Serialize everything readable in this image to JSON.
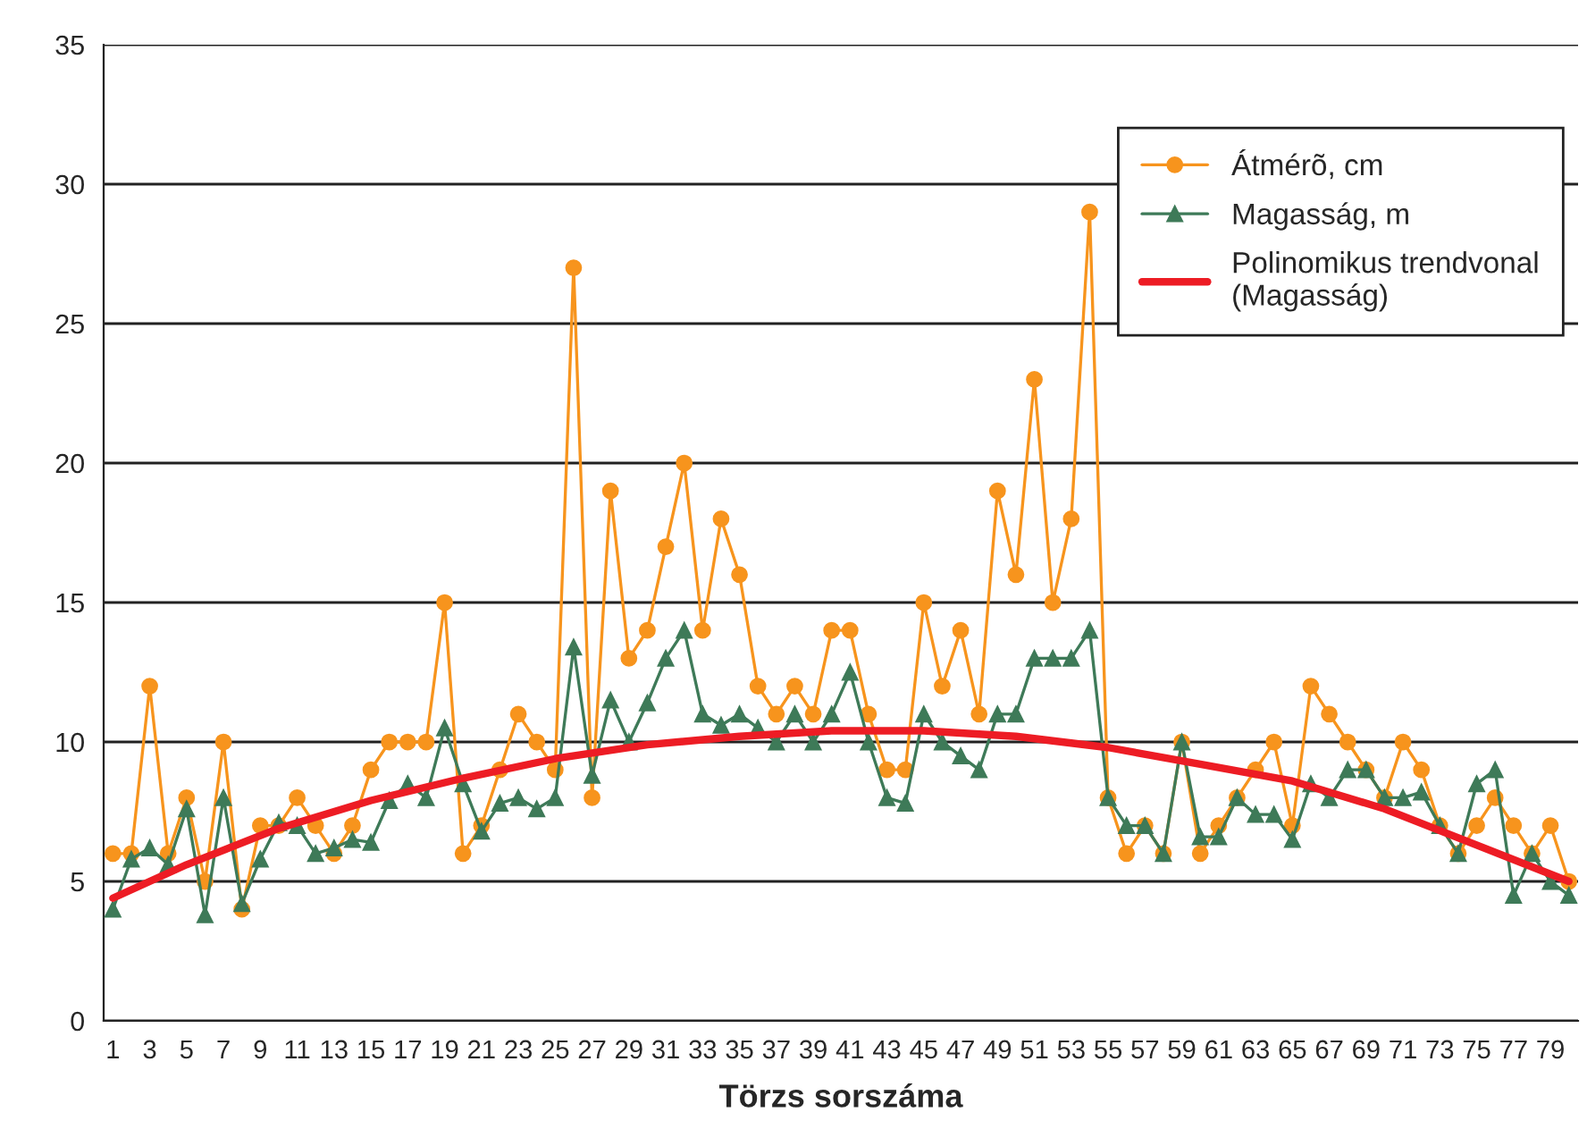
{
  "chart_data": {
    "type": "line",
    "xlabel": "Törzs sorszáma",
    "x": [
      1,
      2,
      3,
      4,
      5,
      6,
      7,
      8,
      9,
      10,
      11,
      12,
      13,
      14,
      15,
      16,
      17,
      18,
      19,
      20,
      21,
      22,
      23,
      24,
      25,
      26,
      27,
      28,
      29,
      30,
      31,
      32,
      33,
      34,
      35,
      36,
      37,
      38,
      39,
      40,
      41,
      42,
      43,
      44,
      45,
      46,
      47,
      48,
      49,
      50,
      51,
      52,
      53,
      54,
      55,
      56,
      57,
      58,
      59,
      60,
      61,
      62,
      63,
      64,
      65,
      66,
      67,
      68,
      69,
      70,
      71,
      72,
      73,
      74,
      75,
      76,
      77,
      78,
      79,
      80
    ],
    "xlim": [
      0.5,
      80.5
    ],
    "xticks": [
      1,
      3,
      5,
      7,
      9,
      11,
      13,
      15,
      17,
      19,
      21,
      23,
      25,
      27,
      29,
      31,
      33,
      35,
      37,
      39,
      41,
      43,
      45,
      47,
      49,
      51,
      53,
      55,
      57,
      59,
      61,
      63,
      65,
      67,
      69,
      71,
      73,
      75,
      77,
      79
    ],
    "ylim": [
      0,
      35
    ],
    "yticks": [
      0,
      5,
      10,
      15,
      20,
      25,
      30,
      35
    ],
    "grid": "y",
    "legend": "top right",
    "series": [
      {
        "name": "Átmérõ, cm",
        "color": "#f7941d",
        "marker": "circle",
        "values": [
          6,
          6,
          12,
          6,
          8,
          5,
          10,
          4,
          7,
          7,
          8,
          7,
          6,
          7,
          9,
          10,
          10,
          10,
          15,
          6,
          7,
          9,
          11,
          10,
          9,
          27,
          8,
          19,
          13,
          14,
          17,
          20,
          14,
          18,
          16,
          12,
          11,
          12,
          11,
          14,
          14,
          11,
          9,
          9,
          15,
          12,
          14,
          11,
          19,
          16,
          23,
          15,
          18,
          29,
          8,
          6,
          7,
          6,
          10,
          6,
          7,
          8,
          9,
          10,
          7,
          12,
          11,
          10,
          9,
          8,
          10,
          9,
          7,
          6,
          7,
          8,
          7,
          6,
          7,
          5
        ]
      },
      {
        "name": "Magasság, m",
        "color": "#3e7a58",
        "marker": "triangle",
        "values": [
          4.0,
          5.8,
          6.2,
          5.6,
          7.6,
          3.8,
          8.0,
          4.2,
          5.8,
          7.1,
          7.0,
          6.0,
          6.2,
          6.5,
          6.4,
          7.9,
          8.5,
          8.0,
          10.5,
          8.5,
          6.8,
          7.8,
          8.0,
          7.6,
          8.0,
          13.4,
          8.8,
          11.5,
          10.0,
          11.4,
          13.0,
          14.0,
          11.0,
          10.6,
          11.0,
          10.5,
          10.0,
          11.0,
          10.0,
          11.0,
          12.5,
          10.0,
          8.0,
          7.8,
          11.0,
          10.0,
          9.5,
          9.0,
          11.0,
          11.0,
          13.0,
          13.0,
          13.0,
          14.0,
          8.0,
          7.0,
          7.0,
          6.0,
          10.0,
          6.6,
          6.6,
          8.0,
          7.4,
          7.4,
          6.5,
          8.5,
          8.0,
          9.0,
          9.0,
          8.0,
          8.0,
          8.2,
          7.0,
          6.0,
          8.5,
          9.0,
          4.5,
          6.0,
          5.0,
          4.5
        ]
      },
      {
        "name": "Polinomikus trendvonal\n(Magasság)",
        "color": "#ed1c24",
        "marker": "none",
        "x": [
          1,
          5,
          10,
          15,
          20,
          25,
          30,
          35,
          40,
          45,
          50,
          55,
          60,
          65,
          70,
          75,
          80
        ],
        "values": [
          4.4,
          5.6,
          6.9,
          7.9,
          8.7,
          9.4,
          9.9,
          10.2,
          10.4,
          10.4,
          10.2,
          9.8,
          9.2,
          8.6,
          7.6,
          6.3,
          5.0
        ]
      }
    ]
  }
}
